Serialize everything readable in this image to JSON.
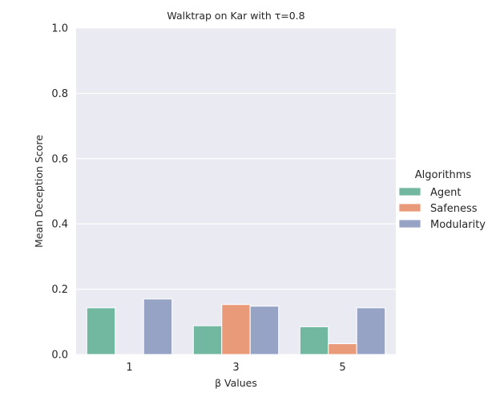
{
  "chart_data": {
    "type": "bar",
    "title": "Walktrap on Kar with τ=0.8",
    "xlabel": "β Values",
    "ylabel": "Mean Deception Score",
    "categories": [
      "1",
      "3",
      "5"
    ],
    "ylim": [
      0,
      1.0
    ],
    "yticks": [
      "0.0",
      "0.2",
      "0.4",
      "0.6",
      "0.8",
      "1.0"
    ],
    "grid": true,
    "legend": {
      "title": "Algorithms",
      "placement": "right"
    },
    "series": [
      {
        "name": "Agent",
        "color": "#72b8a0",
        "values": [
          0.143,
          0.088,
          0.085
        ]
      },
      {
        "name": "Safeness",
        "color": "#e99a78",
        "values": [
          0.0,
          0.153,
          0.033
        ]
      },
      {
        "name": "Modularity",
        "color": "#96a3c5",
        "values": [
          0.17,
          0.148,
          0.143
        ]
      }
    ]
  }
}
